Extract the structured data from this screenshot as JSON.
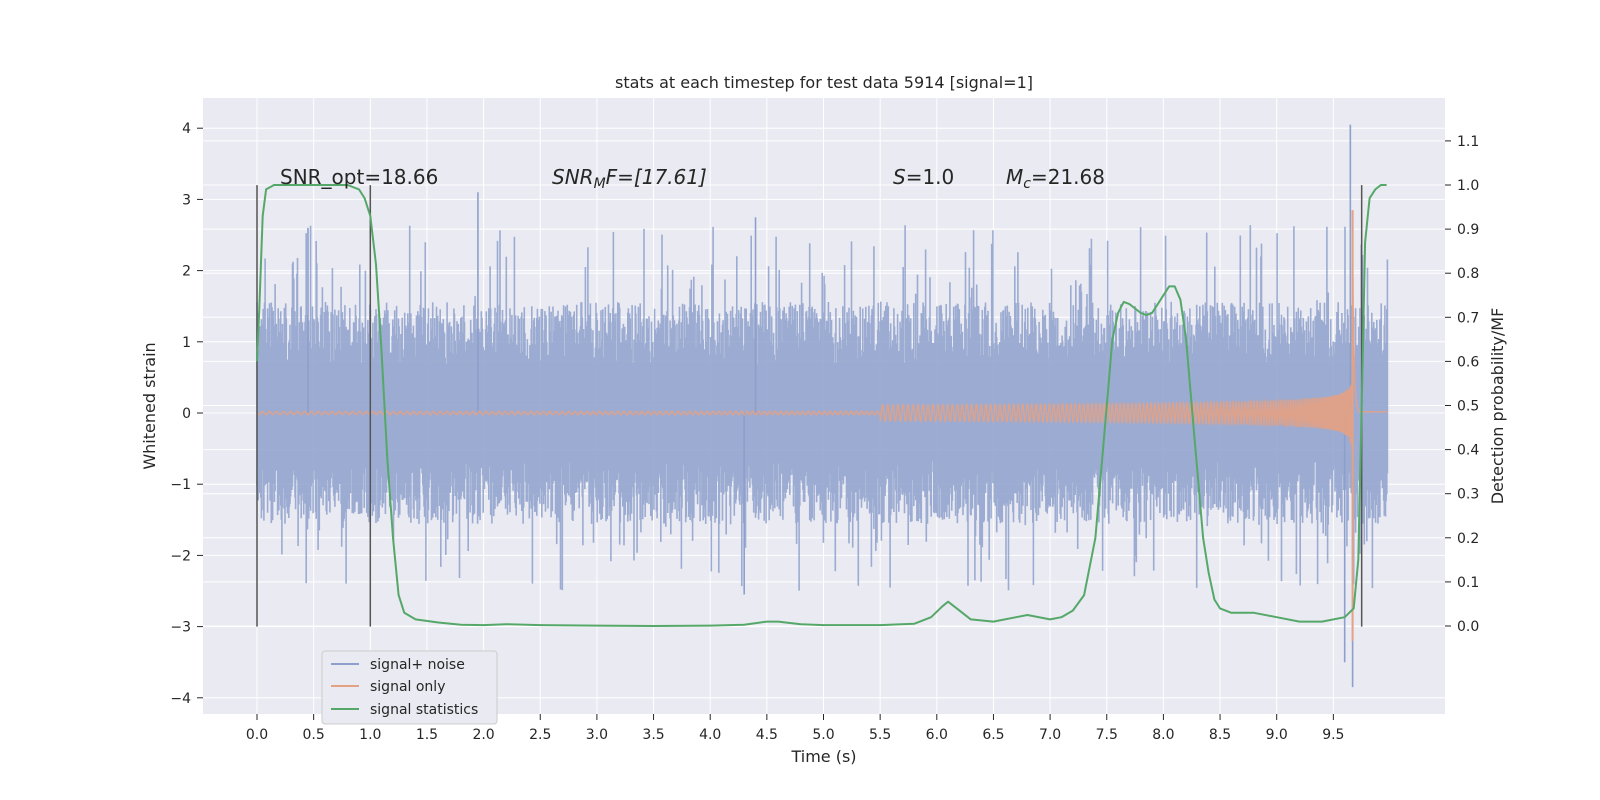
{
  "chart_data": {
    "type": "line",
    "title": "stats at each timestep for test data 5914 [signal=1]",
    "xlabel": "Time (s)",
    "ylabel": "Whitened strain",
    "ylabel_right": "Detection probability/MF",
    "xlim": [
      -0.5,
      10.5
    ],
    "ylim": [
      -4.2,
      4.4
    ],
    "ylim_right": [
      -0.2,
      1.18
    ],
    "xticks": [
      "0.0",
      "0.5",
      "1.0",
      "1.5",
      "2.0",
      "2.5",
      "3.0",
      "3.5",
      "4.0",
      "4.5",
      "5.0",
      "5.5",
      "6.0",
      "6.5",
      "7.0",
      "7.5",
      "8.0",
      "8.5",
      "9.0",
      "9.5"
    ],
    "yticks": [
      "4",
      "3",
      "2",
      "1",
      "0",
      "−1",
      "−2",
      "−3",
      "−4"
    ],
    "yticks_right": [
      "1.1",
      "1.0",
      "0.9",
      "0.8",
      "0.7",
      "0.6",
      "0.5",
      "0.4",
      "0.3",
      "0.2",
      "0.1",
      "0.0"
    ],
    "grid": true,
    "legend_position": "lower-left",
    "annotations": {
      "snr_opt": "SNR_opt=18.66",
      "snr_mf_sym": "SNR",
      "snr_mf_sub": "M",
      "snr_mf_rest": "F=[17.61]",
      "s_sym": "S",
      "s_rest": "=1.0",
      "mc_sym": "M",
      "mc_sub": "c",
      "mc_rest": "=21.68"
    },
    "vertical_markers": [
      {
        "x": 0.0,
        "y_range": [
          -3.0,
          3.2
        ]
      },
      {
        "x": 1.0,
        "y_range": [
          -3.0,
          3.2
        ]
      },
      {
        "x": 9.75,
        "y_range": [
          -3.0,
          3.2
        ]
      }
    ],
    "series": [
      {
        "name": "signal+ noise",
        "color": "#8da0cb",
        "noise_envelope": {
          "x_range": [
            0.0,
            9.98
          ],
          "typical_abs": 1.2,
          "max": 4.05,
          "min": -3.85,
          "spikes": [
            {
              "x": 0.45,
              "y": 2.6
            },
            {
              "x": 1.95,
              "y": 3.1
            },
            {
              "x": 4.4,
              "y": 2.75
            },
            {
              "x": 4.3,
              "y": -2.55
            },
            {
              "x": 9.65,
              "y": 4.05
            },
            {
              "x": 9.67,
              "y": -3.85
            },
            {
              "x": 9.6,
              "y": -3.5
            }
          ]
        }
      },
      {
        "name": "signal only",
        "color": "#e5a183",
        "chirp": {
          "t_merger": 9.67,
          "peak": 2.85,
          "trough": -3.2,
          "x_start": 5.5
        }
      },
      {
        "name": "signal statistics",
        "color": "#55a868",
        "axis": "right",
        "x": [
          0.0,
          0.02,
          0.05,
          0.08,
          0.15,
          0.25,
          0.4,
          0.6,
          0.8,
          0.9,
          0.95,
          1.0,
          1.05,
          1.1,
          1.15,
          1.2,
          1.25,
          1.3,
          1.4,
          1.6,
          1.8,
          2.0,
          2.2,
          2.5,
          3.0,
          3.5,
          4.0,
          4.3,
          4.5,
          4.6,
          4.8,
          5.0,
          5.5,
          5.8,
          5.95,
          6.05,
          6.1,
          6.2,
          6.3,
          6.5,
          6.7,
          6.8,
          7.0,
          7.1,
          7.2,
          7.3,
          7.4,
          7.45,
          7.5,
          7.55,
          7.6,
          7.65,
          7.7,
          7.75,
          7.8,
          7.85,
          7.9,
          8.0,
          8.05,
          8.1,
          8.15,
          8.2,
          8.25,
          8.3,
          8.35,
          8.4,
          8.45,
          8.5,
          8.6,
          8.8,
          9.0,
          9.2,
          9.4,
          9.6,
          9.68,
          9.72,
          9.75,
          9.78,
          9.82,
          9.87,
          9.92,
          9.97
        ],
        "y": [
          0.6,
          0.72,
          0.93,
          0.99,
          1.0,
          1.0,
          1.0,
          1.0,
          1.0,
          0.99,
          0.97,
          0.93,
          0.82,
          0.62,
          0.38,
          0.2,
          0.07,
          0.03,
          0.015,
          0.008,
          0.003,
          0.002,
          0.004,
          0.002,
          0.001,
          0.0,
          0.001,
          0.003,
          0.01,
          0.01,
          0.004,
          0.002,
          0.002,
          0.005,
          0.02,
          0.045,
          0.055,
          0.035,
          0.015,
          0.01,
          0.02,
          0.025,
          0.015,
          0.02,
          0.035,
          0.07,
          0.2,
          0.35,
          0.5,
          0.65,
          0.71,
          0.735,
          0.73,
          0.72,
          0.71,
          0.705,
          0.71,
          0.75,
          0.77,
          0.77,
          0.74,
          0.65,
          0.5,
          0.35,
          0.2,
          0.12,
          0.06,
          0.04,
          0.03,
          0.03,
          0.02,
          0.01,
          0.01,
          0.02,
          0.04,
          0.15,
          0.5,
          0.87,
          0.97,
          0.99,
          1.0,
          1.0
        ]
      }
    ]
  }
}
